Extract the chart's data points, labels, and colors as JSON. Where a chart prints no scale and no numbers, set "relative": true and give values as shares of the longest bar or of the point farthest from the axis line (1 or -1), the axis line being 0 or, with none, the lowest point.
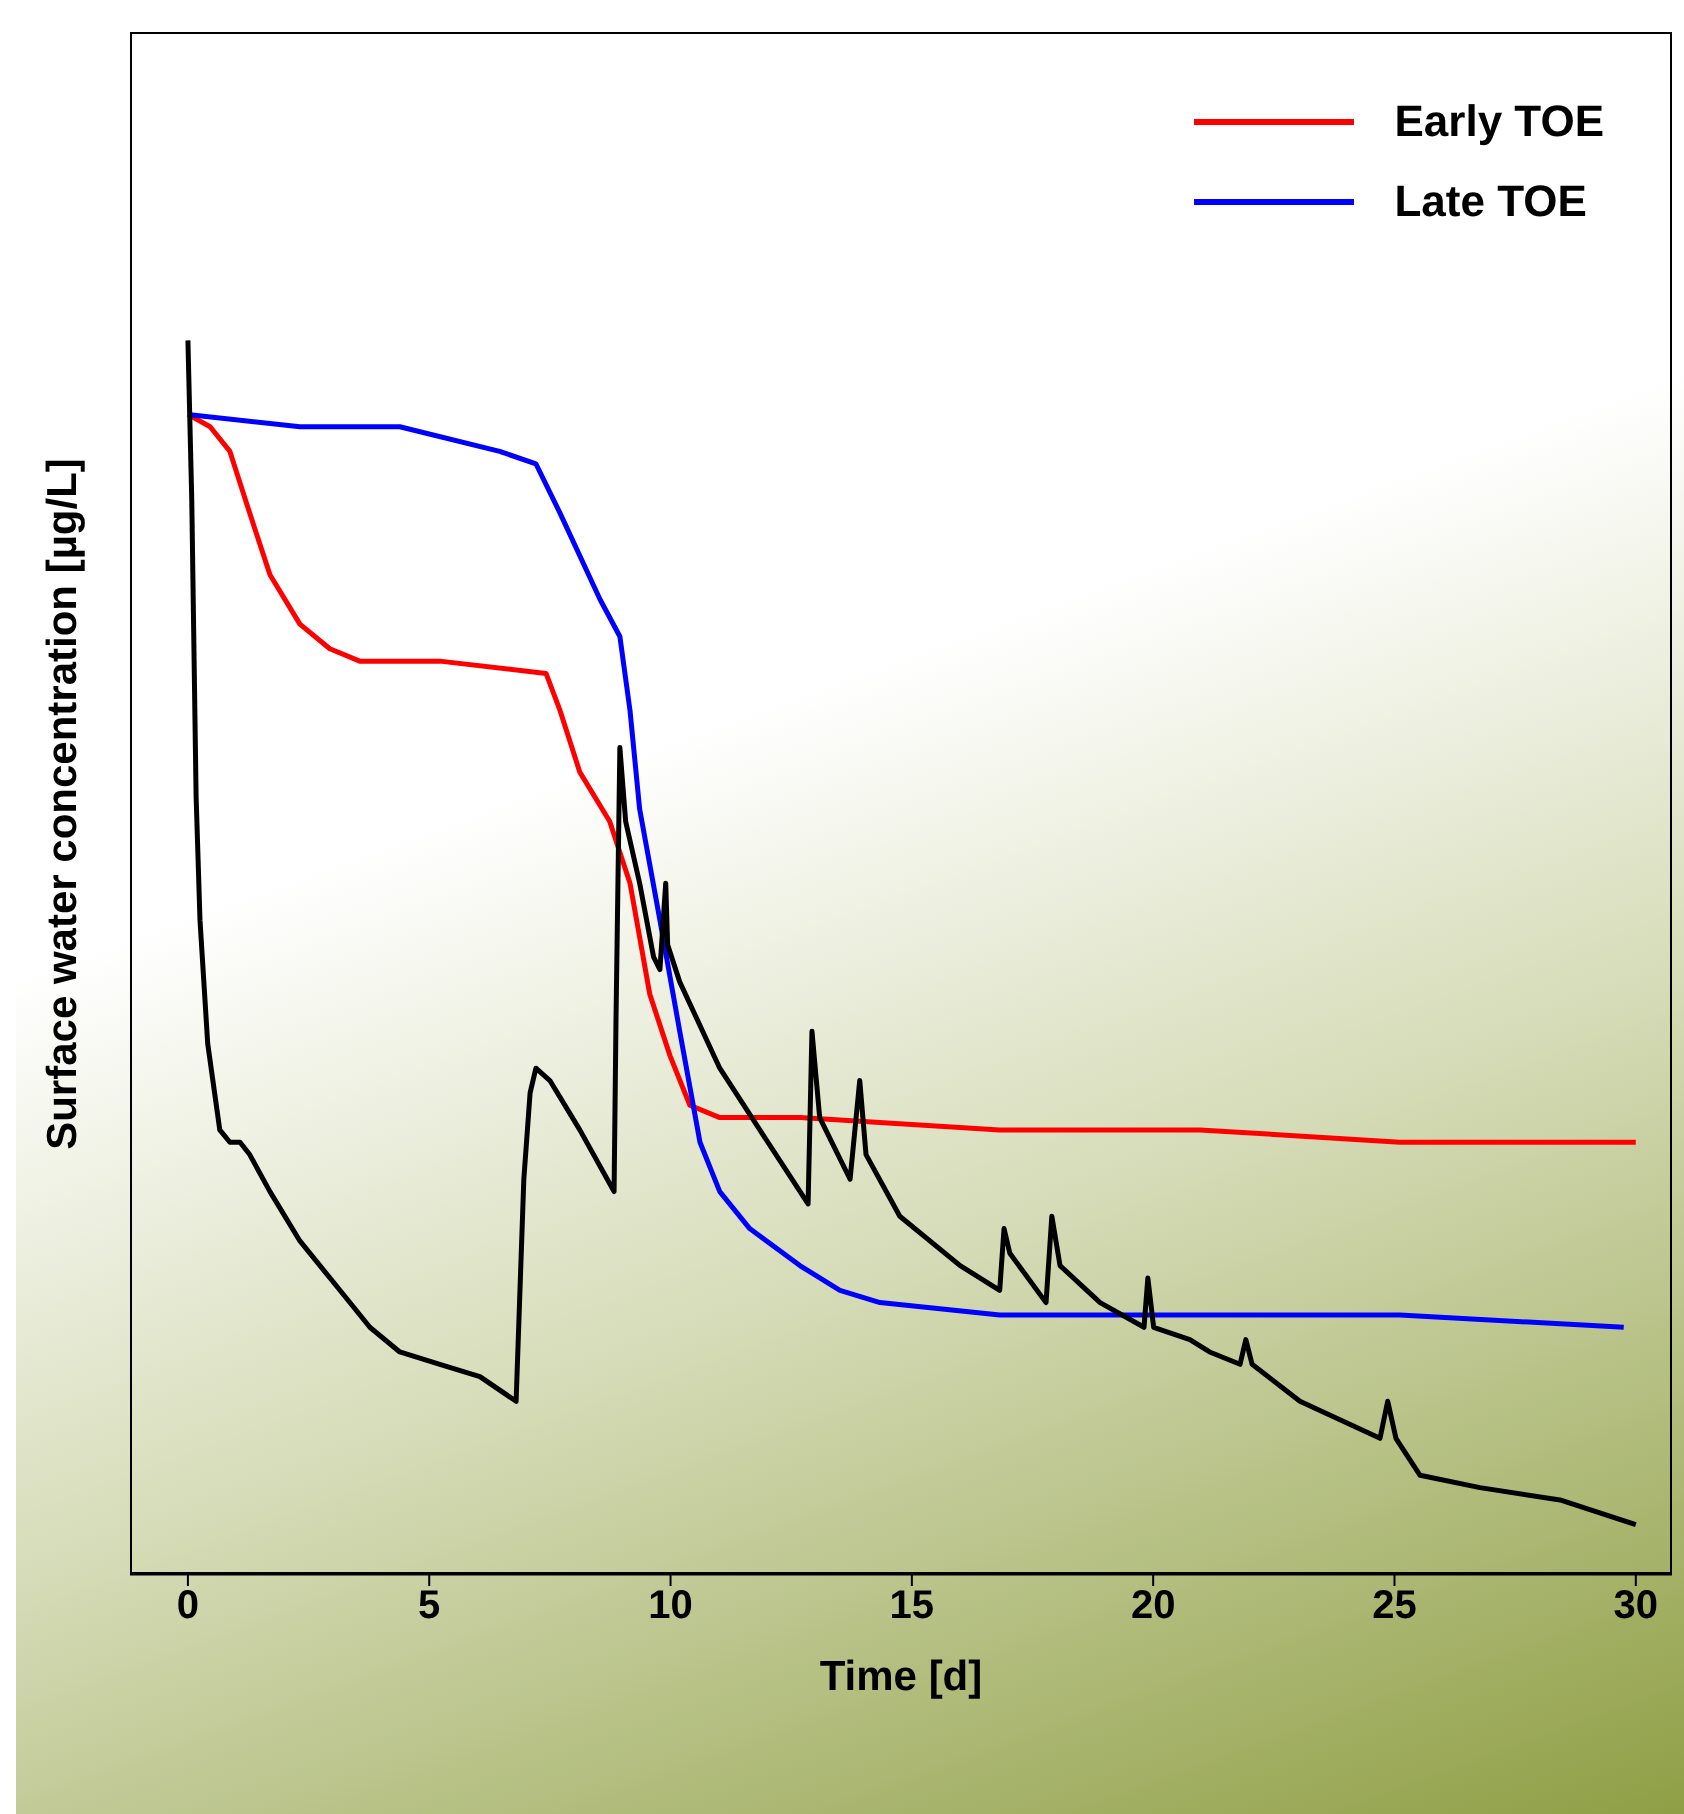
{
  "chart_data": {
    "type": "line",
    "relative": true,
    "xlabel": "Time [d]",
    "ylabel": "Surface water concentration [µg/L]",
    "xlim": [
      -1.2,
      30.75
    ],
    "xticks": [
      0,
      5,
      10,
      15,
      20,
      25,
      30
    ],
    "grid": false,
    "legend": "top right",
    "marker": "none",
    "line_style": "solid",
    "series": [
      {
        "name": "Early TOE",
        "color": "#ff0000",
        "x": [
          0,
          0.46,
          0.87,
          1.28,
          1.7,
          2.32,
          2.94,
          3.56,
          5.22,
          7.42,
          7.71,
          8.12,
          8.74,
          9.16,
          9.57,
          9.99,
          10.4,
          11.02,
          12.68,
          16.82,
          20.97,
          25.11,
          30
        ],
        "values": [
          0.94,
          0.93,
          0.91,
          0.86,
          0.81,
          0.77,
          0.75,
          0.74,
          0.74,
          0.73,
          0.7,
          0.65,
          0.61,
          0.56,
          0.47,
          0.42,
          0.38,
          0.37,
          0.37,
          0.36,
          0.36,
          0.35,
          0.35
        ]
      },
      {
        "name": "Late TOE",
        "color": "#0000ff",
        "x": [
          0,
          2.32,
          4.39,
          6.46,
          7.21,
          7.71,
          8.54,
          8.95,
          9.16,
          9.36,
          9.78,
          10.19,
          10.61,
          11.02,
          11.64,
          12.68,
          13.51,
          14.34,
          16.82,
          20.97,
          25.11,
          29.75
        ],
        "values": [
          0.94,
          0.93,
          0.93,
          0.91,
          0.9,
          0.86,
          0.79,
          0.76,
          0.7,
          0.62,
          0.53,
          0.44,
          0.35,
          0.31,
          0.28,
          0.25,
          0.23,
          0.22,
          0.21,
          0.21,
          0.21,
          0.2
        ]
      },
      {
        "color": "#000000",
        "x": [
          0,
          0.08,
          0.17,
          0.25,
          0.41,
          0.66,
          0.87,
          1.08,
          1.28,
          1.7,
          2.32,
          3.15,
          3.77,
          4.39,
          5.22,
          6.05,
          6.8,
          6.96,
          7.09,
          7.21,
          7.5,
          8.12,
          8.83,
          8.87,
          8.95,
          9.07,
          9.36,
          9.65,
          9.78,
          9.9,
          9.94,
          10.19,
          11.02,
          11.85,
          12.85,
          12.93,
          13.09,
          13.72,
          13.92,
          14.05,
          14.75,
          16,
          16.82,
          16.91,
          17.03,
          17.78,
          17.9,
          18.07,
          18.9,
          19.81,
          19.89,
          20.01,
          20.76,
          21.17,
          21.8,
          21.92,
          22.05,
          23.04,
          24.7,
          24.86,
          25.03,
          25.53,
          26.77,
          28.43,
          30
        ],
        "values": [
          1,
          0.87,
          0.63,
          0.53,
          0.43,
          0.36,
          0.35,
          0.35,
          0.34,
          0.31,
          0.27,
          0.23,
          0.2,
          0.18,
          0.17,
          0.16,
          0.14,
          0.32,
          0.39,
          0.41,
          0.4,
          0.36,
          0.31,
          0.45,
          0.67,
          0.61,
          0.56,
          0.5,
          0.49,
          0.56,
          0.51,
          0.48,
          0.41,
          0.36,
          0.3,
          0.44,
          0.37,
          0.32,
          0.4,
          0.34,
          0.29,
          0.25,
          0.23,
          0.28,
          0.26,
          0.22,
          0.29,
          0.25,
          0.22,
          0.2,
          0.24,
          0.2,
          0.19,
          0.18,
          0.17,
          0.19,
          0.17,
          0.14,
          0.11,
          0.14,
          0.11,
          0.08,
          0.07,
          0.06,
          0.04
        ]
      }
    ]
  }
}
